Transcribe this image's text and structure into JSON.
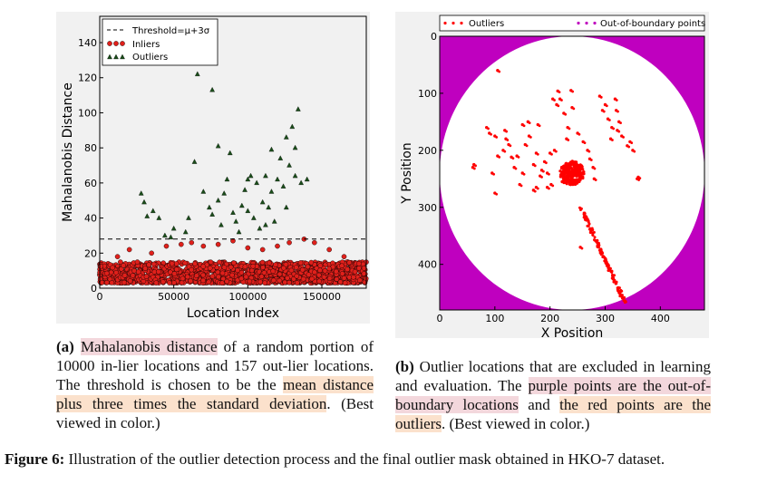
{
  "chart_data": [
    {
      "type": "scatter",
      "title": "",
      "xlabel": "Location Index",
      "ylabel": "Mahalanobis Distance",
      "xlim": [
        0,
        180000
      ],
      "ylim": [
        0,
        155
      ],
      "xticks": [
        "0",
        "50000",
        "100000",
        "150000"
      ],
      "xtick_values": [
        0,
        50000,
        100000,
        150000
      ],
      "yticks": [
        "0",
        "20",
        "40",
        "60",
        "80",
        "100",
        "120",
        "140"
      ],
      "ytick_values": [
        0,
        20,
        40,
        60,
        80,
        100,
        120,
        140
      ],
      "threshold": 28,
      "legend": {
        "position": "top-left",
        "entries": [
          "Threshold=μ+3σ",
          "Inliers",
          "Outliers"
        ]
      },
      "series": [
        {
          "name": "Inliers",
          "color": "#e0201b",
          "marker": "circle",
          "band": {
            "y_min": 3,
            "y_max": 15,
            "x_min": 0,
            "x_max": 180000
          },
          "values": [
            [
              12000,
              18
            ],
            [
              20000,
              22
            ],
            [
              35000,
              20
            ],
            [
              45000,
              24
            ],
            [
              55000,
              25
            ],
            [
              62000,
              26
            ],
            [
              70000,
              24
            ],
            [
              80000,
              25
            ],
            [
              90000,
              27
            ],
            [
              100000,
              23
            ],
            [
              110000,
              22
            ],
            [
              120000,
              24
            ],
            [
              128000,
              26
            ],
            [
              138000,
              28
            ],
            [
              145000,
              26
            ],
            [
              155000,
              22
            ],
            [
              165000,
              18
            ],
            [
              175000,
              14
            ]
          ]
        },
        {
          "name": "Outliers",
          "color": "#1a4d1a",
          "marker": "triangle",
          "values": [
            [
              28000,
              54
            ],
            [
              30000,
              49
            ],
            [
              32000,
              41
            ],
            [
              36000,
              44
            ],
            [
              40000,
              40
            ],
            [
              44000,
              30
            ],
            [
              50000,
              34
            ],
            [
              58000,
              32
            ],
            [
              60000,
              40
            ],
            [
              64000,
              72
            ],
            [
              66000,
              122
            ],
            [
              70000,
              55
            ],
            [
              74000,
              46
            ],
            [
              76000,
              42
            ],
            [
              80000,
              50
            ],
            [
              82000,
              36
            ],
            [
              86000,
              62
            ],
            [
              88000,
              77
            ],
            [
              90000,
              43
            ],
            [
              92000,
              38
            ],
            [
              94000,
              32
            ],
            [
              96000,
              47
            ],
            [
              98000,
              56
            ],
            [
              100000,
              44
            ],
            [
              102000,
              64
            ],
            [
              104000,
              40
            ],
            [
              106000,
              60
            ],
            [
              108000,
              34
            ],
            [
              110000,
              49
            ],
            [
              112000,
              36
            ],
            [
              114000,
              46
            ],
            [
              116000,
              55
            ],
            [
              118000,
              38
            ],
            [
              120000,
              62
            ],
            [
              122000,
              74
            ],
            [
              124000,
              58
            ],
            [
              126000,
              86
            ],
            [
              128000,
              70
            ],
            [
              130000,
              92
            ],
            [
              132000,
              80
            ],
            [
              136000,
              60
            ],
            [
              140000,
              62
            ],
            [
              80000,
              81
            ],
            [
              76000,
              113
            ],
            [
              48000,
              29
            ],
            [
              84000,
              54
            ],
            [
              100000,
              62
            ],
            [
              112000,
              64
            ],
            [
              116000,
              79
            ],
            [
              126000,
              46
            ],
            [
              132000,
              64
            ],
            [
              134000,
              102
            ]
          ]
        }
      ]
    },
    {
      "type": "scatter",
      "xlabel": "X Position",
      "ylabel": "Y Position",
      "xlim": [
        0,
        480
      ],
      "ylim": [
        480,
        0
      ],
      "xticks": [
        "0",
        "100",
        "200",
        "300",
        "400"
      ],
      "xtick_values": [
        0,
        100,
        200,
        300,
        400
      ],
      "yticks": [
        "0",
        "100",
        "200",
        "300",
        "400"
      ],
      "ytick_values": [
        0,
        100,
        200,
        300,
        400
      ],
      "legend": {
        "position": "top",
        "entries": [
          "Outliers",
          "Out-of-boundary points"
        ]
      },
      "boundary": {
        "shape": "circle",
        "center": [
          240,
          240
        ],
        "radius": 240,
        "outside_color": "#bf00bf"
      },
      "series": [
        {
          "name": "Outliers",
          "color": "#ff0000",
          "marker": "dot",
          "cluster": {
            "center": [
              240,
              240
            ],
            "radius": 22
          },
          "streak": {
            "from": [
              255,
              300
            ],
            "to": [
              335,
              465
            ]
          },
          "values": [
            [
              60,
              230
            ],
            [
              62,
              225
            ],
            [
              85,
              160
            ],
            [
              90,
              170
            ],
            [
              100,
              175
            ],
            [
              105,
              210
            ],
            [
              115,
              200
            ],
            [
              118,
              165
            ],
            [
              120,
              180
            ],
            [
              125,
              190
            ],
            [
              130,
              212
            ],
            [
              135,
              230
            ],
            [
              140,
              210
            ],
            [
              145,
              260
            ],
            [
              150,
              240
            ],
            [
              155,
              190
            ],
            [
              160,
              150
            ],
            [
              162,
              175
            ],
            [
              170,
              225
            ],
            [
              175,
              205
            ],
            [
              178,
              155
            ],
            [
              182,
              245
            ],
            [
              185,
              235
            ],
            [
              190,
              220
            ],
            [
              195,
              240
            ],
            [
              200,
              205
            ],
            [
              202,
              260
            ],
            [
              205,
              110
            ],
            [
              208,
              200
            ],
            [
              212,
              120
            ],
            [
              214,
              96
            ],
            [
              218,
              110
            ],
            [
              222,
              255
            ],
            [
              225,
              135
            ],
            [
              230,
              180
            ],
            [
              232,
              160
            ],
            [
              238,
              95
            ],
            [
              240,
              125
            ],
            [
              250,
              170
            ],
            [
              255,
              370
            ],
            [
              260,
              185
            ],
            [
              268,
              200
            ],
            [
              272,
              215
            ],
            [
              278,
              230
            ],
            [
              280,
              250
            ],
            [
              290,
              105
            ],
            [
              295,
              130
            ],
            [
              300,
              120
            ],
            [
              305,
              145
            ],
            [
              310,
              180
            ],
            [
              312,
              160
            ],
            [
              318,
              110
            ],
            [
              320,
              130
            ],
            [
              322,
              165
            ],
            [
              325,
              150
            ],
            [
              330,
              175
            ],
            [
              340,
              192
            ],
            [
              345,
              185
            ],
            [
              350,
              200
            ],
            [
              358,
              250
            ],
            [
              360,
              247
            ],
            [
              105,
              60
            ],
            [
              150,
              155
            ],
            [
              170,
              270
            ],
            [
              175,
              265
            ],
            [
              195,
              265
            ],
            [
              95,
              240
            ],
            [
              100,
              275
            ]
          ]
        },
        {
          "name": "Out-of-boundary points",
          "color": "#bf00bf",
          "marker": "dot",
          "values": []
        }
      ]
    }
  ],
  "captions": {
    "a": {
      "label": "(a)",
      "hl1": "Mahalanobis distance",
      "t1": " of a random portion of 10000 in-lier locations and 157 out-lier locations. The threshold is chosen to be the ",
      "hl2": "mean distance plus three times the standard deviation",
      "t2": ". (Best viewed in color.)"
    },
    "b": {
      "label": "(b)",
      "t1": " Outlier locations that are excluded in learning and evaluation. The ",
      "hl1": "purple points are the out-of-boundary locations",
      "t2": " and ",
      "hl2": "the red points are the outliers",
      "t3": ". (Best viewed in color.)"
    },
    "figure": {
      "label": "Figure 6:",
      "text": " Illustration of the outlier detection process and the final outlier mask obtained in HKO-7 dataset."
    }
  }
}
